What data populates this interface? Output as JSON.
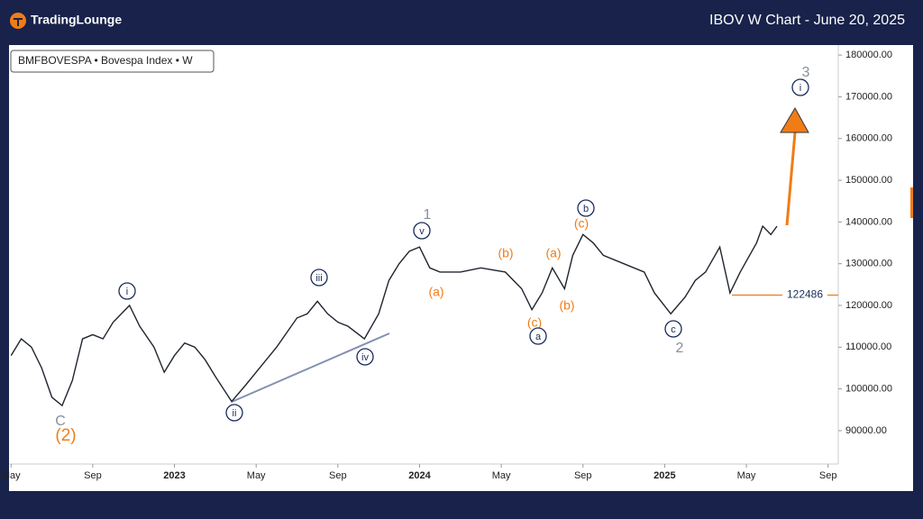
{
  "header": {
    "brand": "TradingLounge",
    "title": "IBOV W Chart - June 20, 2025"
  },
  "chart_data": {
    "type": "line",
    "legend_text": "BMFBOVESPA • Bovespa Index • W",
    "color": "#1f2530",
    "x": [
      0,
      0.5,
      1,
      1.5,
      2,
      2.5,
      3,
      3.5,
      4,
      4.5,
      5,
      5.8,
      6.3,
      7,
      7.5,
      8,
      8.5,
      9,
      9.5,
      10,
      10.8,
      11.5,
      12,
      13,
      14,
      14.5,
      15,
      15.5,
      16,
      16.5,
      17.3,
      18,
      18.5,
      19,
      19.5,
      20,
      20.5,
      21,
      22,
      23,
      24.2,
      25,
      25.5,
      26,
      26.5,
      27.1,
      27.5,
      28,
      28.5,
      29,
      30,
      31,
      31.5,
      32.3,
      33,
      33.5,
      34,
      34.7,
      35.2,
      35.7,
      36.5,
      36.8,
      37.2,
      37.5
    ],
    "values": [
      108000,
      112000,
      110000,
      105000,
      98000,
      96000,
      102000,
      112000,
      113000,
      112000,
      116000,
      120000,
      115000,
      110000,
      104000,
      108000,
      111000,
      110000,
      107000,
      103000,
      97000,
      101000,
      104000,
      110000,
      117000,
      118000,
      121000,
      118000,
      116000,
      115000,
      112000,
      118000,
      126000,
      130000,
      133000,
      134000,
      129000,
      128000,
      128000,
      129000,
      128000,
      124000,
      119000,
      123000,
      129000,
      124000,
      132000,
      137000,
      135000,
      132000,
      130000,
      128000,
      123000,
      118000,
      122000,
      126000,
      128000,
      134000,
      123000,
      128000,
      135000,
      139000,
      137000,
      139000
    ],
    "xlim": [
      -0.1,
      40.5
    ],
    "xticks": [
      {
        "value": 0,
        "label": "May"
      },
      {
        "value": 4,
        "label": "Sep"
      },
      {
        "value": 8,
        "label": "2023"
      },
      {
        "value": 12,
        "label": "May"
      },
      {
        "value": 16,
        "label": "Sep"
      },
      {
        "value": 20,
        "label": "2024"
      },
      {
        "value": 24,
        "label": "May"
      },
      {
        "value": 28,
        "label": "Sep"
      },
      {
        "value": 32,
        "label": "2025"
      },
      {
        "value": 36,
        "label": "May"
      },
      {
        "value": 40,
        "label": "Sep"
      }
    ],
    "ylim": [
      82000,
      182400
    ],
    "yticks": [
      {
        "value": 90000,
        "label": "90000.00"
      },
      {
        "value": 100000,
        "label": "100000.00"
      },
      {
        "value": 110000,
        "label": "110000.00"
      },
      {
        "value": 120000,
        "label": "120000.00"
      },
      {
        "value": 130000,
        "label": "130000.00"
      },
      {
        "value": 140000,
        "label": "140000.00"
      },
      {
        "value": 150000,
        "label": "150000.00"
      },
      {
        "value": 160000,
        "label": "160000.00"
      },
      {
        "value": 170000,
        "label": "170000.00"
      },
      {
        "value": 180000,
        "label": "180000.00"
      }
    ],
    "price_level": 122486,
    "wave_labels": [
      {
        "text": "C",
        "style": "gray"
      },
      {
        "text": "(2)",
        "style": "orange"
      },
      {
        "text": "i",
        "style": "circle"
      },
      {
        "text": "ii",
        "style": "circle"
      },
      {
        "text": "iii",
        "style": "circle"
      },
      {
        "text": "iv",
        "style": "circle"
      },
      {
        "text": "v",
        "style": "circle"
      },
      {
        "text": "1",
        "style": "gray"
      },
      {
        "text": "(a)",
        "style": "orange"
      },
      {
        "text": "(b)",
        "style": "orange"
      },
      {
        "text": "(c)",
        "style": "orange"
      },
      {
        "text": "a",
        "style": "circle"
      },
      {
        "text": "(a)",
        "style": "orange"
      },
      {
        "text": "(b)",
        "style": "orange"
      },
      {
        "text": "(c)",
        "style": "orange"
      },
      {
        "text": "b",
        "style": "circle"
      },
      {
        "text": "c",
        "style": "circle"
      },
      {
        "text": "2",
        "style": "gray"
      },
      {
        "text": "3",
        "style": "gray"
      },
      {
        "text": "i",
        "style": "circle"
      }
    ]
  }
}
